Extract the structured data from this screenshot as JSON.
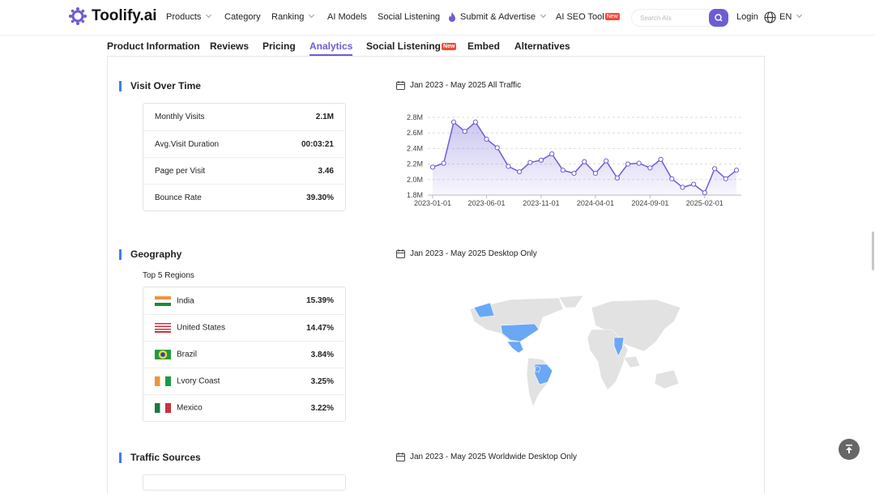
{
  "nav": {
    "logo": "Toolify.ai",
    "items": [
      "Products",
      "Category",
      "Ranking",
      "AI Models",
      "Social Listening",
      "Submit & Advertise",
      "AI SEO Tool"
    ],
    "new_badge": "New",
    "search_placeholder": "Search AIs",
    "login": "Login",
    "language": "EN"
  },
  "tabs": {
    "items": [
      "Product Information",
      "Reviews",
      "Pricing",
      "Analytics",
      "Social Listening",
      "Embed",
      "Alternatives"
    ],
    "active": "Analytics",
    "new_badge": "New"
  },
  "visit": {
    "title": "Visit Over Time",
    "range": "Jan 2023 - May 2025 All Traffic",
    "stats": [
      {
        "label": "Monthly Visits",
        "value": "2.1M"
      },
      {
        "label": "Avg.Visit Duration",
        "value": "00:03:21"
      },
      {
        "label": "Page per Visit",
        "value": "3.46"
      },
      {
        "label": "Bounce Rate",
        "value": "39.30%"
      }
    ]
  },
  "chart_data": {
    "type": "line",
    "color": "#6c5dd3",
    "grid": true,
    "x": [
      "2023-01-01",
      "2023-02-01",
      "2023-03-01",
      "2023-04-01",
      "2023-05-01",
      "2023-06-01",
      "2023-07-01",
      "2023-08-01",
      "2023-09-01",
      "2023-10-01",
      "2023-11-01",
      "2023-12-01",
      "2024-01-01",
      "2024-02-01",
      "2024-03-01",
      "2024-04-01",
      "2024-05-01",
      "2024-06-01",
      "2024-07-01",
      "2024-08-01",
      "2024-09-01",
      "2024-10-01",
      "2024-11-01",
      "2024-12-01",
      "2025-01-01",
      "2025-02-01",
      "2025-03-01",
      "2025-04-01",
      "2025-05-01"
    ],
    "values": [
      2160000,
      2210000,
      2740000,
      2620000,
      2740000,
      2520000,
      2410000,
      2170000,
      2100000,
      2220000,
      2250000,
      2330000,
      2120000,
      2080000,
      2230000,
      2080000,
      2240000,
      2020000,
      2200000,
      2210000,
      2150000,
      2260000,
      2010000,
      1900000,
      1940000,
      1830000,
      2140000,
      2010000,
      2120000
    ],
    "xticks": [
      "2023-01-01",
      "2023-06-01",
      "2023-11-01",
      "2024-04-01",
      "2024-09-01",
      "2025-02-01"
    ],
    "ylim": [
      1800000,
      2800000
    ],
    "yticks": [
      {
        "value": 1800000,
        "label": "1.8M"
      },
      {
        "value": 2000000,
        "label": "2.0M"
      },
      {
        "value": 2200000,
        "label": "2.2M"
      },
      {
        "value": 2400000,
        "label": "2.4M"
      },
      {
        "value": 2600000,
        "label": "2.6M"
      },
      {
        "value": 2800000,
        "label": "2.8M"
      }
    ]
  },
  "geography": {
    "title": "Geography",
    "range": "Jan 2023 - May 2025 Desktop Only",
    "subtitle": "Top 5 Regions",
    "regions": [
      {
        "name": "India",
        "share": "15.39%"
      },
      {
        "name": "United States",
        "share": "14.47%"
      },
      {
        "name": "Brazil",
        "share": "3.84%"
      },
      {
        "name": "Lvory Coast",
        "share": "3.25%"
      },
      {
        "name": "Mexico",
        "share": "3.22%"
      }
    ]
  },
  "traffic": {
    "title": "Traffic Sources",
    "range": "Jan 2023 - May 2025 Worldwide Desktop Only"
  }
}
